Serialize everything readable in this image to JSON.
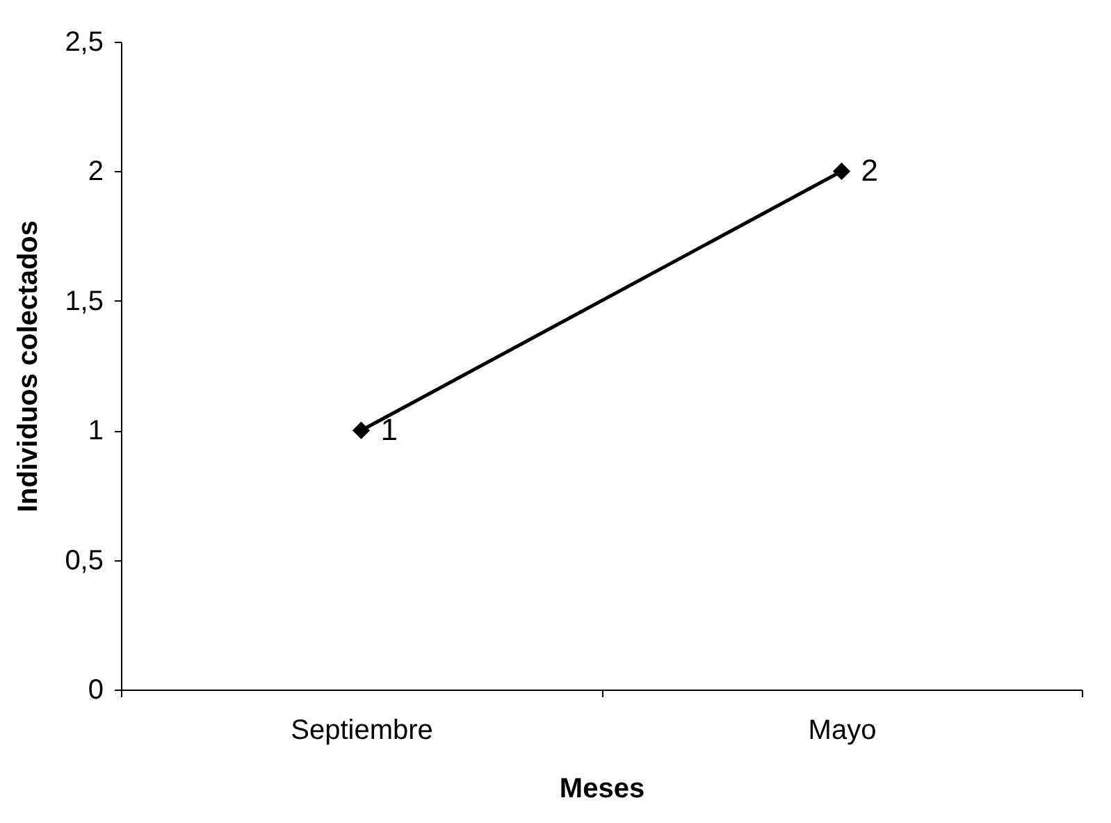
{
  "chart_data": {
    "type": "line",
    "xlabel": "Meses",
    "ylabel": "Individuos colectados",
    "categories": [
      "Septiembre",
      "Mayo"
    ],
    "series": [
      {
        "color": "#000000",
        "values": [
          1,
          2
        ]
      }
    ],
    "ylim": [
      0,
      2.5
    ],
    "yticks": [
      0,
      {
        "value": 0.5,
        "label": "0,5"
      },
      1,
      {
        "value": 1.5,
        "label": "1,5"
      },
      2,
      {
        "value": 2.5,
        "label": "2,5"
      }
    ],
    "marker": "diamond",
    "line_style": "solid",
    "data_labels": true,
    "grid": false
  }
}
